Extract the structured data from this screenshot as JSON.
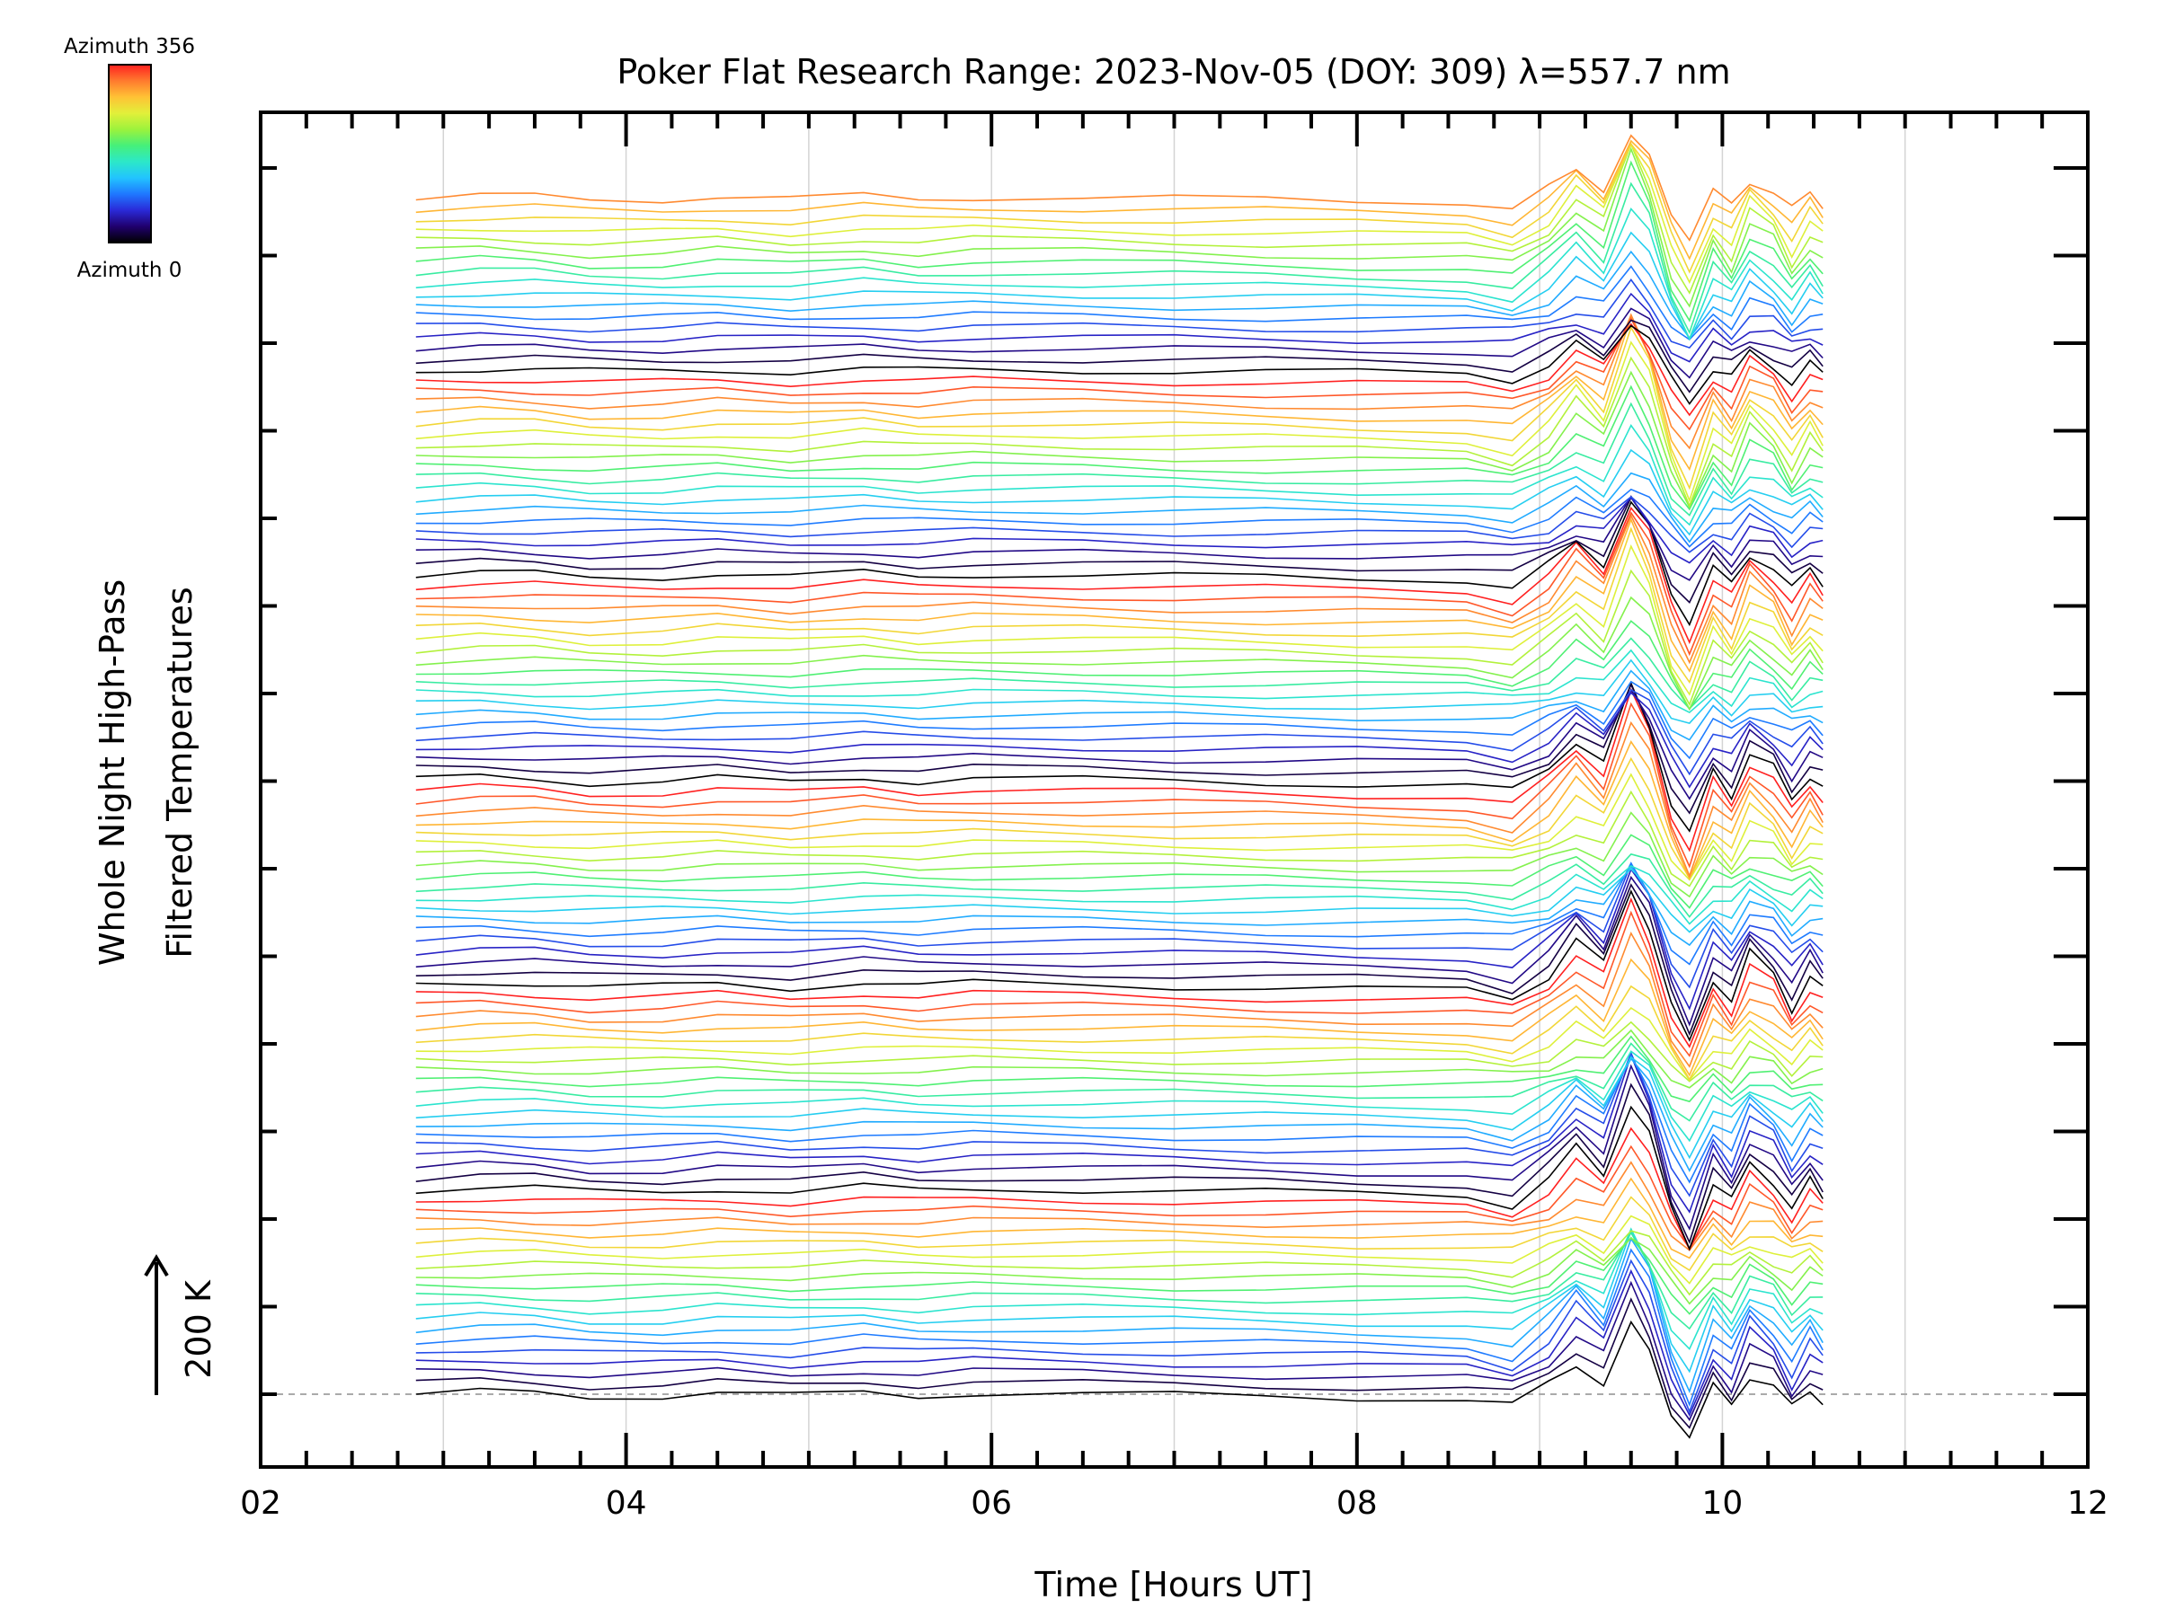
{
  "chart_data": {
    "type": "line",
    "title": "Poker Flat Research Range: 2023-Nov-05 (DOY: 309) λ=557.7 nm",
    "xlabel": "Time [Hours UT]",
    "ylabel": [
      "Whole Night High-Pass",
      "Filtered Temperatures"
    ],
    "x_unit": "hours UT",
    "xlim": [
      2,
      12
    ],
    "x_ticks": [
      "02",
      "04",
      "06",
      "08",
      "10",
      "12"
    ],
    "data_x_range": [
      2.85,
      10.55
    ],
    "scale_indicator": "200 K",
    "legend": {
      "type": "colorbar",
      "placement": "top-left",
      "top_label": "Azimuth 356",
      "bottom_label": "Azimuth 0",
      "azimuth_range": [
        0,
        356
      ]
    },
    "grid": "vertical, light grey at every hour",
    "baseline": "dashed grey line at lowest trace",
    "n_traces": 112,
    "stack": "traces offset vertically; 6 repeating azimuth color cycles, stacked bottom to top",
    "colormap": [
      "#000000",
      "#20006e",
      "#2a2ad8",
      "#1f78ff",
      "#22c4ff",
      "#2ce8c8",
      "#46f07a",
      "#9cf23c",
      "#e2f03a",
      "#ffc235",
      "#ff7a2e",
      "#ff2020"
    ],
    "trace_profile": {
      "x": [
        2.85,
        3.2,
        3.5,
        3.8,
        4.2,
        4.5,
        4.9,
        5.3,
        5.6,
        5.9,
        6.5,
        7.0,
        7.5,
        8.0,
        8.6,
        8.85,
        9.05,
        9.2,
        9.35,
        9.5,
        9.6,
        9.72,
        9.82,
        9.95,
        10.05,
        10.15,
        10.28,
        10.38,
        10.48,
        10.55
      ],
      "y_relative_K": [
        0,
        4,
        2,
        -4,
        -3,
        2,
        -4,
        4,
        -2,
        2,
        0,
        -2,
        -4,
        -6,
        -8,
        -20,
        15,
        60,
        25,
        130,
        80,
        -30,
        -80,
        10,
        -20,
        40,
        15,
        -30,
        10,
        -10
      ]
    }
  }
}
